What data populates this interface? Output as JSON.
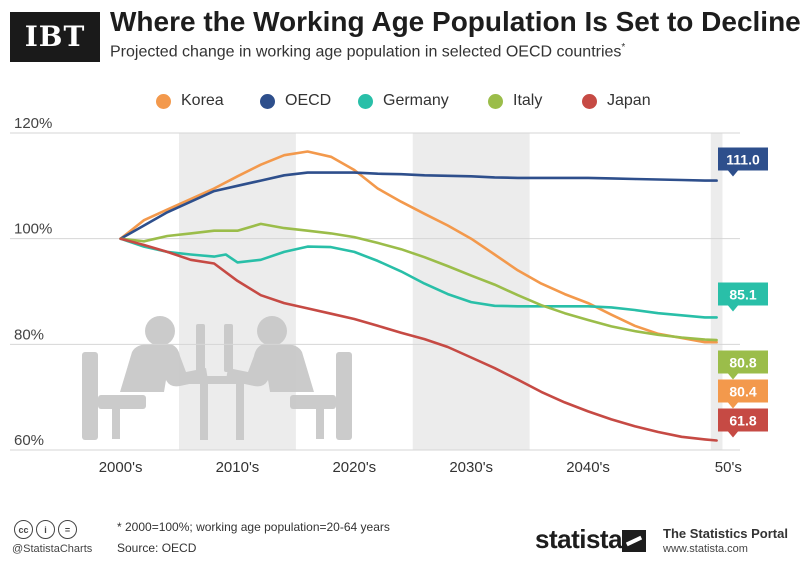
{
  "brand": {
    "logo_text": "IBT",
    "handle": "@StatistaCharts",
    "statista": "statista",
    "portal_title": "The Statistics Portal",
    "portal_url": "www.statista.com"
  },
  "header": {
    "title": "Where the Working Age Population Is Set to Decline",
    "subtitle": "Projected change in working age population in selected OECD countries",
    "subtitle_mark": "*"
  },
  "footer": {
    "note": "* 2000=100%; working age population=20-64 years",
    "source": "Source: OECD"
  },
  "colors": {
    "Korea": "#f3994c",
    "OECD": "#2e4f8c",
    "Germany": "#29bfa8",
    "Italy": "#9bbd4a",
    "Japan": "#c64a44",
    "band": "#ececec",
    "grid": "#d6d6d6"
  },
  "chart_data": {
    "type": "line",
    "title": "Where the Working Age Population Is Set to Decline",
    "ylabel": "",
    "xlabel": "",
    "ylim": [
      60,
      120
    ],
    "xlim": [
      1995.5,
      2053
    ],
    "yticks": [
      60,
      80,
      100,
      120
    ],
    "ytick_labels": [
      "60%",
      "80%",
      "100%",
      "120%"
    ],
    "decade_labels": [
      {
        "label": "2000's",
        "center": 2000
      },
      {
        "label": "2010's",
        "center": 2010
      },
      {
        "label": "2020's",
        "center": 2020
      },
      {
        "label": "2030's",
        "center": 2030
      },
      {
        "label": "2040's",
        "center": 2040
      },
      {
        "label": "50's",
        "center": 2052
      }
    ],
    "shaded_spans": [
      [
        2005,
        2015
      ],
      [
        2025,
        2035
      ],
      [
        2050.5,
        2051.5
      ]
    ],
    "series": [
      {
        "name": "Korea",
        "end_label": "80.4",
        "x": [
          2000,
          2002,
          2004,
          2006,
          2008,
          2010,
          2012,
          2014,
          2016,
          2018,
          2020,
          2022,
          2024,
          2026,
          2028,
          2030,
          2032,
          2034,
          2036,
          2038,
          2040,
          2042,
          2044,
          2046,
          2048,
          2050,
          2051
        ],
        "y": [
          100,
          103.5,
          105.5,
          107.5,
          109.5,
          111.8,
          114,
          115.8,
          116.5,
          115.5,
          113,
          109.5,
          107,
          104.7,
          102.5,
          100,
          97,
          94,
          91.5,
          89.5,
          87.8,
          85.6,
          83.5,
          82,
          81.2,
          80.4,
          80.4
        ]
      },
      {
        "name": "OECD",
        "end_label": "111.0",
        "x": [
          2000,
          2002,
          2004,
          2006,
          2008,
          2010,
          2012,
          2014,
          2016,
          2018,
          2020,
          2022,
          2024,
          2026,
          2028,
          2030,
          2032,
          2034,
          2036,
          2038,
          2040,
          2042,
          2044,
          2046,
          2048,
          2050,
          2051
        ],
        "y": [
          100,
          102.5,
          105,
          107,
          109,
          110,
          111,
          112,
          112.5,
          112.5,
          112.5,
          112.3,
          112.2,
          112,
          111.9,
          111.8,
          111.6,
          111.5,
          111.5,
          111.5,
          111.5,
          111.4,
          111.3,
          111.2,
          111.1,
          111,
          111
        ]
      },
      {
        "name": "Germany",
        "end_label": "85.1",
        "x": [
          2000,
          2002,
          2004,
          2006,
          2008,
          2009,
          2010,
          2012,
          2014,
          2016,
          2018,
          2020,
          2022,
          2024,
          2026,
          2028,
          2030,
          2032,
          2034,
          2036,
          2038,
          2040,
          2042,
          2044,
          2046,
          2048,
          2050,
          2051
        ],
        "y": [
          100,
          98.5,
          97.5,
          97,
          96.6,
          97,
          95.5,
          96,
          97.5,
          98.5,
          98.4,
          97.5,
          95.8,
          93.8,
          91.5,
          89.5,
          88,
          87.3,
          87.2,
          87.2,
          87.2,
          87.2,
          87,
          86.5,
          85.9,
          85.5,
          85.1,
          85.1
        ]
      },
      {
        "name": "Italy",
        "end_label": "80.8",
        "x": [
          2000,
          2002,
          2004,
          2006,
          2008,
          2010,
          2012,
          2014,
          2016,
          2018,
          2020,
          2022,
          2024,
          2026,
          2028,
          2030,
          2032,
          2034,
          2036,
          2038,
          2040,
          2042,
          2044,
          2046,
          2048,
          2050,
          2051
        ],
        "y": [
          100,
          99.5,
          100.5,
          101,
          101.5,
          101.5,
          102.8,
          102,
          101.5,
          101,
          100.3,
          99.2,
          98,
          96.5,
          94.8,
          93,
          91.3,
          89.3,
          87.4,
          85.9,
          84.6,
          83.4,
          82.5,
          81.8,
          81.3,
          80.9,
          80.8
        ]
      },
      {
        "name": "Japan",
        "end_label": "61.8",
        "x": [
          2000,
          2002,
          2004,
          2006,
          2008,
          2010,
          2012,
          2014,
          2016,
          2018,
          2020,
          2022,
          2024,
          2026,
          2028,
          2030,
          2032,
          2034,
          2036,
          2038,
          2040,
          2042,
          2044,
          2046,
          2048,
          2050,
          2051
        ],
        "y": [
          100,
          98.8,
          97.5,
          96,
          95.3,
          92,
          89.3,
          87.8,
          86.8,
          85.8,
          84.8,
          83.5,
          82.2,
          81,
          79.5,
          77.5,
          75.5,
          73.3,
          71,
          69,
          67.3,
          65.8,
          64.5,
          63.4,
          62.5,
          62,
          61.8
        ]
      }
    ]
  }
}
